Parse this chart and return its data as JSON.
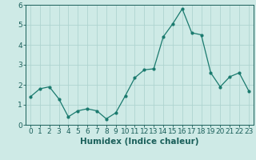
{
  "title": "",
  "xlabel": "Humidex (Indice chaleur)",
  "ylabel": "",
  "x": [
    0,
    1,
    2,
    3,
    4,
    5,
    6,
    7,
    8,
    9,
    10,
    11,
    12,
    13,
    14,
    15,
    16,
    17,
    18,
    19,
    20,
    21,
    22,
    23
  ],
  "y": [
    1.4,
    1.8,
    1.9,
    1.3,
    0.4,
    0.7,
    0.8,
    0.7,
    0.3,
    0.6,
    1.45,
    2.35,
    2.75,
    2.8,
    4.4,
    5.05,
    5.8,
    4.6,
    4.5,
    2.6,
    1.9,
    2.4,
    2.6,
    1.7
  ],
  "line_color": "#1a7a6e",
  "bg_color": "#ceeae6",
  "grid_color": "#aed4d0",
  "axis_label_color": "#1a5f5a",
  "tick_color": "#1a5f5a",
  "ylim": [
    0,
    6
  ],
  "xlim": [
    -0.5,
    23.5
  ],
  "yticks": [
    0,
    1,
    2,
    3,
    4,
    5,
    6
  ],
  "xticks": [
    0,
    1,
    2,
    3,
    4,
    5,
    6,
    7,
    8,
    9,
    10,
    11,
    12,
    13,
    14,
    15,
    16,
    17,
    18,
    19,
    20,
    21,
    22,
    23
  ],
  "xlabel_fontsize": 7.5,
  "tick_fontsize": 6.5
}
